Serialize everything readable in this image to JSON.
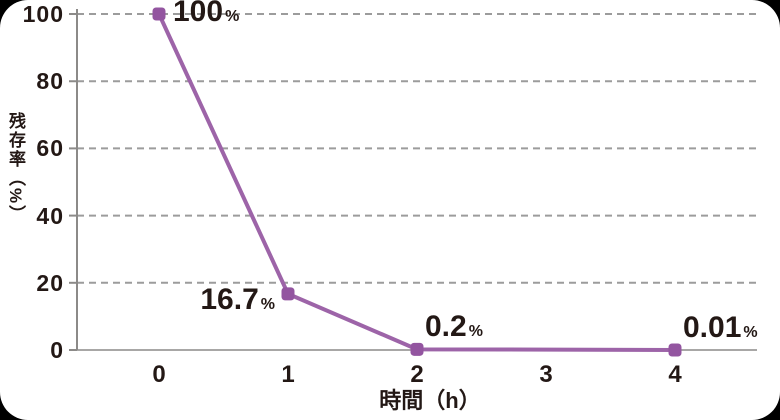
{
  "chart_data": {
    "type": "line",
    "title": "",
    "xlabel": "時間（h）",
    "ylabel": "残存率（%）",
    "x_ticks": [
      "0",
      "1",
      "2",
      "3",
      "4"
    ],
    "y_ticks": [
      0,
      20,
      40,
      60,
      80,
      100
    ],
    "xlim": [
      0,
      4.64
    ],
    "ylim": [
      0,
      100
    ],
    "grid": "dashed-horizontal",
    "legend": "none",
    "colors": {
      "line": "#9d64a8",
      "marker": "#9355a0",
      "grid": "#9c9c9c",
      "axis": "#8c8a88",
      "ink": "#231815",
      "card_background": "#ffffff",
      "page_background": "#000000"
    },
    "series": [
      {
        "points": [
          {
            "x": 0,
            "y": 100,
            "label": "100%",
            "label_side": "right"
          },
          {
            "x": 1,
            "y": 16.7,
            "label": "16.7%",
            "label_side": "left"
          },
          {
            "x": 2,
            "y": 0.2,
            "label": "0.2%",
            "label_side": "above-right"
          },
          {
            "x": 4,
            "y": 0.01,
            "label": "0.01%",
            "label_side": "above-right"
          }
        ]
      }
    ]
  }
}
